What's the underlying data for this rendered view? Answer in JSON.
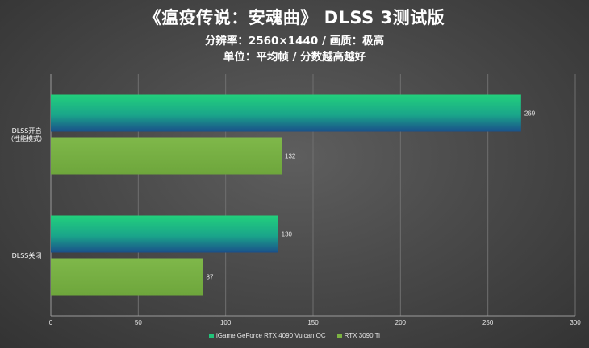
{
  "chart_data": {
    "type": "bar",
    "orientation": "horizontal",
    "title": "《瘟疫传说：安魂曲》 DLSS 3测试版",
    "subtitle_lines": [
      "分辨率：2560×1440 / 画质：极高",
      "单位：平均帧 / 分数越高越好"
    ],
    "categories": [
      "DLSS开启\n（性能模式）",
      "DLSS关闭"
    ],
    "series": [
      {
        "name": "iGame GeForce RTX 4090 Vulcan OC",
        "values": [
          269,
          130
        ],
        "color": "#22c47a"
      },
      {
        "name": "RTX 3090 Ti",
        "values": [
          132,
          87
        ],
        "color": "#7cb342"
      }
    ],
    "xlim": [
      0,
      300
    ],
    "xticks": [
      0,
      50,
      100,
      150,
      200,
      250,
      300
    ],
    "grid": true,
    "legend_position": "bottom"
  }
}
